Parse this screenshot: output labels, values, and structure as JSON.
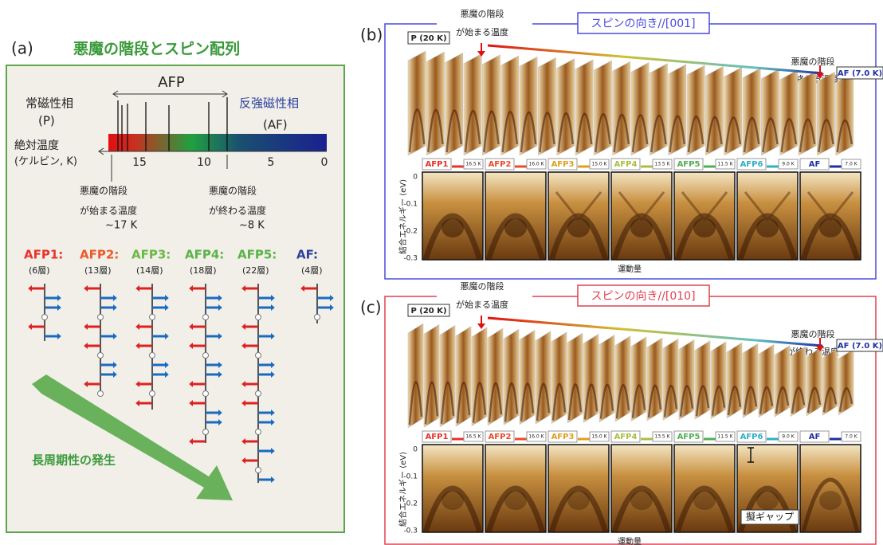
{
  "panel_a": {
    "label": "(a)",
    "title": "悪魔の階段とスピン配列",
    "afp": "AFP",
    "paramagnetic": "常磁性相",
    "paramagnetic_abbr": "(P)",
    "antiferro": "反強磁性相",
    "antiferro_abbr": "(AF)",
    "axis_label": [
      "絶対温度",
      "(ケルビン, K)"
    ],
    "ticks": [
      "15",
      "10",
      "5",
      "0"
    ],
    "start_note": [
      "悪魔の階段",
      "が始まる温度",
      "~17 K"
    ],
    "end_note": [
      "悪魔の階段",
      "が終わる温度",
      "~8 K"
    ],
    "phases": [
      {
        "name": "AFP1:",
        "layers": "(6層)",
        "color": "#e8322a"
      },
      {
        "name": "AFP2:",
        "layers": "(13層)",
        "color": "#ec5a2a"
      },
      {
        "name": "AFP3:",
        "layers": "(14層)",
        "color": "#6ab844"
      },
      {
        "name": "AFP4:",
        "layers": "(18層)",
        "color": "#5bb24a"
      },
      {
        "name": "AFP5:",
        "layers": "(22層)",
        "color": "#5bb24a"
      },
      {
        "name": "AF:",
        "layers": "(4層)",
        "color": "#2c3fa0"
      }
    ],
    "arrow_label": "長周期性の発生"
  },
  "panels": [
    {
      "label": "(b)",
      "spin_direction": "スピンの向き//[001]",
      "border": "#4a4ae0",
      "start_note": [
        "悪魔の階段",
        "が始まる温度"
      ],
      "end_note": [
        "悪魔の階段",
        "が終わる温度"
      ],
      "p_label": "P (20 K)",
      "af_label": "AF (7.0 K)",
      "spectra": [
        {
          "name": "AFP1",
          "temp": "16.5 K",
          "color": "#e8322a"
        },
        {
          "name": "AFP2",
          "temp": "16.0 K",
          "color": "#ec4a2a"
        },
        {
          "name": "AFP3",
          "temp": "15.0 K",
          "color": "#e0a020"
        },
        {
          "name": "AFP4",
          "temp": "13.5 K",
          "color": "#a8c040"
        },
        {
          "name": "AFP5",
          "temp": "11.5 K",
          "color": "#50b050"
        },
        {
          "name": "AFP6",
          "temp": "9.0 K",
          "color": "#30b0c0"
        },
        {
          "name": "AF",
          "temp": "7.0 K",
          "color": "#2030a0"
        }
      ],
      "y_axis_label": "結合エネルギー (eV)",
      "y_ticks": [
        "0",
        "-0.1",
        "-0.2",
        "-0.3"
      ],
      "x_axis_label": "運動量"
    },
    {
      "label": "(c)",
      "spin_direction": "スピンの向き//[010]",
      "border": "#e04050",
      "start_note": [
        "悪魔の階段",
        "が始まる温度"
      ],
      "end_note": [
        "悪魔の階段",
        "が終わる温度"
      ],
      "p_label": "P (20 K)",
      "af_label": "AF (7.0 K)",
      "spectra": [
        {
          "name": "AFP1",
          "temp": "16.5 K",
          "color": "#e8322a"
        },
        {
          "name": "AFP2",
          "temp": "16.0 K",
          "color": "#ec4a2a"
        },
        {
          "name": "AFP3",
          "temp": "15.0 K",
          "color": "#e0a020"
        },
        {
          "name": "AFP4",
          "temp": "13.5 K",
          "color": "#a8c040"
        },
        {
          "name": "AFP5",
          "temp": "11.5 K",
          "color": "#50b050"
        },
        {
          "name": "AFP6",
          "temp": "9.0 K",
          "color": "#30b0c0"
        },
        {
          "name": "AF",
          "temp": "7.0 K",
          "color": "#2030a0"
        }
      ],
      "y_axis_label": "結合エネルギー (eV)",
      "y_ticks": [
        "0",
        "-0.1",
        "-0.2",
        "-0.3"
      ],
      "x_axis_label": "運動量",
      "gap_label": "擬ギャップ"
    }
  ]
}
